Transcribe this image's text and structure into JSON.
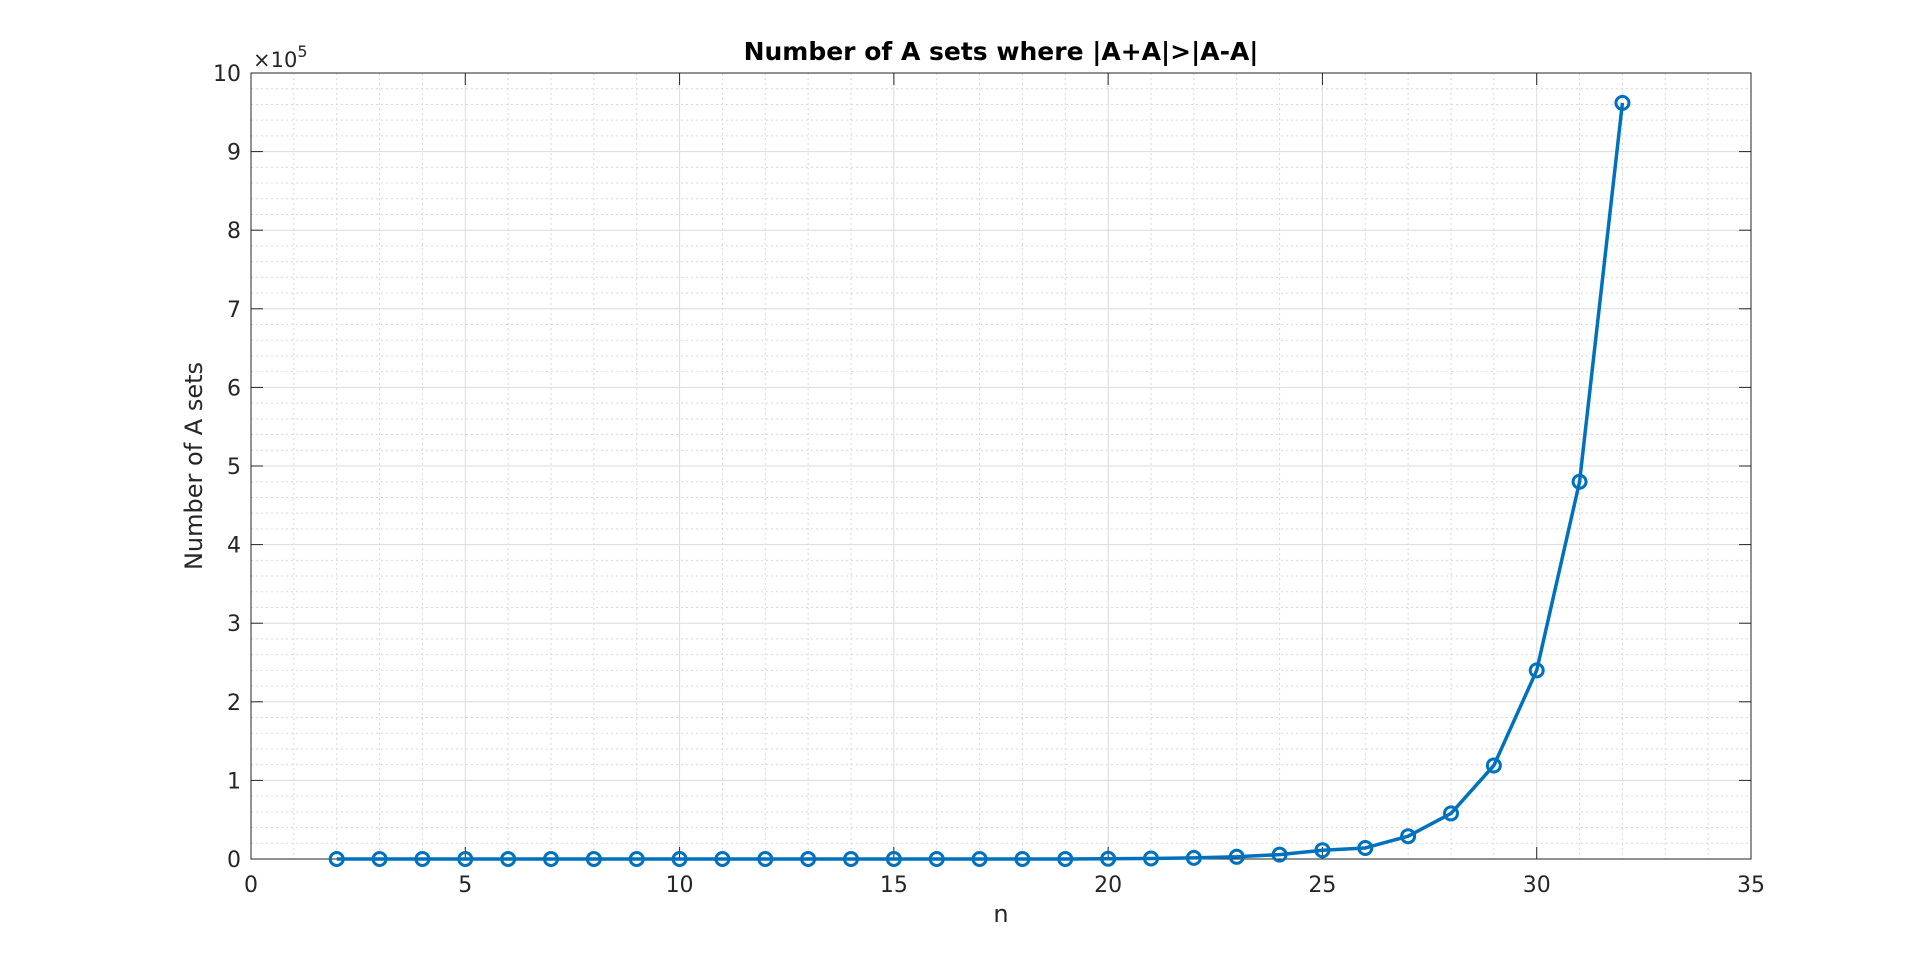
{
  "chart_data": {
    "type": "line",
    "title": "Number of A sets where |A+A|>|A-A|",
    "xlabel": "n",
    "ylabel": "Number of A sets",
    "xlim": [
      0,
      35
    ],
    "ylim": [
      0,
      10
    ],
    "y_multiplier_base": "×10",
    "y_multiplier_exponent": "5",
    "xticks": [
      "0",
      "5",
      "10",
      "15",
      "20",
      "25",
      "30",
      "35"
    ],
    "yticks": [
      "0",
      "1",
      "2",
      "3",
      "4",
      "5",
      "6",
      "7",
      "8",
      "9",
      "10"
    ],
    "grid": true,
    "minor_grid": true,
    "series": [
      {
        "color": "#0072BD",
        "marker": "circle",
        "x": [
          2,
          3,
          4,
          5,
          6,
          7,
          8,
          9,
          10,
          11,
          12,
          13,
          14,
          15,
          16,
          17,
          18,
          19,
          20,
          21,
          22,
          23,
          24,
          25,
          26,
          27,
          28,
          29,
          30,
          31,
          32
        ],
        "y": [
          0,
          0,
          0,
          0,
          0,
          0,
          0,
          0,
          0,
          0,
          0,
          0,
          0,
          0,
          0,
          0,
          0,
          0,
          0.0035,
          0.007,
          0.014,
          0.028,
          0.056,
          0.112,
          0.14,
          0.29,
          0.58,
          1.19,
          2.4,
          4.8,
          9.62
        ]
      }
    ]
  }
}
